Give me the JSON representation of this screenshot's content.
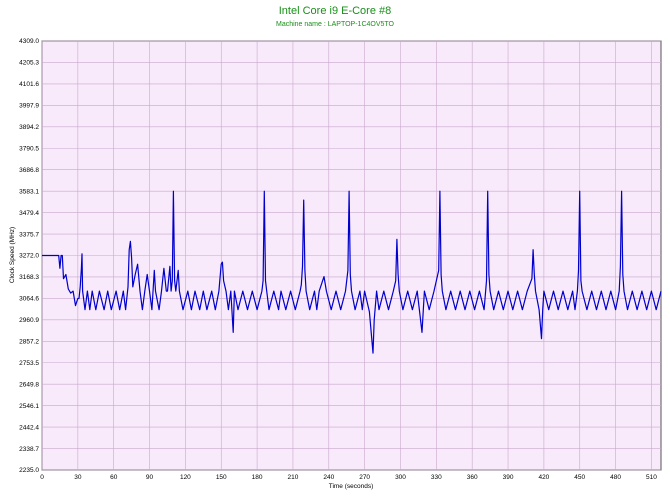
{
  "chart_data": {
    "type": "line",
    "title": "Intel Core i9 E-Core #8",
    "subtitle": "Machine name : LAPTOP-1C4OV5TO",
    "xlabel": "Time (seconds)",
    "ylabel": "Clock Speed (MHz)",
    "xlim": [
      0,
      518
    ],
    "ylim": [
      2235.0,
      4309.0
    ],
    "x_ticks": [
      0,
      30,
      60,
      90,
      120,
      150,
      180,
      210,
      240,
      270,
      300,
      330,
      360,
      390,
      420,
      450,
      480,
      510
    ],
    "y_ticks": [
      "2235.0",
      "2338.7",
      "2442.4",
      "2546.1",
      "2649.8",
      "2753.5",
      "2857.2",
      "2960.9",
      "3064.6",
      "3168.3",
      "3272.0",
      "3375.7",
      "3479.4",
      "3583.1",
      "3686.8",
      "3790.5",
      "3894.2",
      "3997.9",
      "4101.6",
      "4205.3",
      "4309.0"
    ],
    "grid": true,
    "colors": {
      "plot_bg": "#f8e9fb",
      "grid": "#c9a9cc",
      "line": "#0000cc",
      "title": "#1a8f1a"
    },
    "series": [
      {
        "values": [
          [
            0,
            3272
          ],
          [
            5,
            3272
          ],
          [
            10,
            3272
          ],
          [
            14,
            3272
          ],
          [
            15,
            3210
          ],
          [
            16,
            3272
          ],
          [
            17,
            3272
          ],
          [
            18,
            3160
          ],
          [
            20,
            3180
          ],
          [
            22,
            3110
          ],
          [
            24,
            3090
          ],
          [
            26,
            3100
          ],
          [
            28,
            3030
          ],
          [
            30,
            3064
          ],
          [
            31,
            3064
          ],
          [
            32,
            3120
          ],
          [
            33,
            3210
          ],
          [
            33.5,
            3280
          ],
          [
            34,
            3100
          ],
          [
            36,
            3010
          ],
          [
            38,
            3100
          ],
          [
            40,
            3010
          ],
          [
            42,
            3100
          ],
          [
            45,
            3010
          ],
          [
            48,
            3100
          ],
          [
            52,
            3010
          ],
          [
            55,
            3100
          ],
          [
            58,
            3010
          ],
          [
            62,
            3100
          ],
          [
            65,
            3010
          ],
          [
            68,
            3100
          ],
          [
            70,
            3010
          ],
          [
            72,
            3120
          ],
          [
            73,
            3300
          ],
          [
            74,
            3340
          ],
          [
            75,
            3260
          ],
          [
            76,
            3120
          ],
          [
            78,
            3180
          ],
          [
            80,
            3230
          ],
          [
            82,
            3100
          ],
          [
            84,
            3010
          ],
          [
            86,
            3100
          ],
          [
            88,
            3180
          ],
          [
            90,
            3100
          ],
          [
            92,
            3010
          ],
          [
            94,
            3200
          ],
          [
            95,
            3100
          ],
          [
            98,
            3010
          ],
          [
            100,
            3100
          ],
          [
            102,
            3210
          ],
          [
            104,
            3100
          ],
          [
            105,
            3100
          ],
          [
            106,
            3160
          ],
          [
            107,
            3220
          ],
          [
            108,
            3100
          ],
          [
            109,
            3150
          ],
          [
            110,
            3583
          ],
          [
            111,
            3150
          ],
          [
            112,
            3100
          ],
          [
            114,
            3200
          ],
          [
            115,
            3100
          ],
          [
            118,
            3010
          ],
          [
            122,
            3100
          ],
          [
            125,
            3010
          ],
          [
            128,
            3100
          ],
          [
            132,
            3010
          ],
          [
            135,
            3100
          ],
          [
            138,
            3010
          ],
          [
            142,
            3100
          ],
          [
            145,
            3010
          ],
          [
            148,
            3100
          ],
          [
            150,
            3230
          ],
          [
            151,
            3240
          ],
          [
            152,
            3150
          ],
          [
            154,
            3100
          ],
          [
            156,
            3010
          ],
          [
            158,
            3100
          ],
          [
            160,
            2900
          ],
          [
            161,
            3100
          ],
          [
            164,
            3010
          ],
          [
            168,
            3100
          ],
          [
            172,
            3010
          ],
          [
            176,
            3100
          ],
          [
            180,
            3010
          ],
          [
            184,
            3100
          ],
          [
            185,
            3150
          ],
          [
            186,
            3583
          ],
          [
            187,
            3150
          ],
          [
            188,
            3100
          ],
          [
            190,
            3010
          ],
          [
            194,
            3100
          ],
          [
            198,
            3010
          ],
          [
            200,
            3100
          ],
          [
            204,
            3010
          ],
          [
            208,
            3100
          ],
          [
            212,
            3010
          ],
          [
            216,
            3100
          ],
          [
            217,
            3130
          ],
          [
            218,
            3220
          ],
          [
            219,
            3540
          ],
          [
            220,
            3200
          ],
          [
            221,
            3100
          ],
          [
            224,
            3010
          ],
          [
            228,
            3100
          ],
          [
            230,
            3010
          ],
          [
            232,
            3100
          ],
          [
            236,
            3170
          ],
          [
            238,
            3100
          ],
          [
            242,
            3010
          ],
          [
            246,
            3100
          ],
          [
            250,
            3010
          ],
          [
            254,
            3100
          ],
          [
            256,
            3200
          ],
          [
            257,
            3583
          ],
          [
            258,
            3180
          ],
          [
            259,
            3100
          ],
          [
            262,
            3010
          ],
          [
            266,
            3100
          ],
          [
            268,
            3010
          ],
          [
            270,
            3100
          ],
          [
            274,
            3000
          ],
          [
            277,
            2800
          ],
          [
            278,
            2960
          ],
          [
            280,
            3100
          ],
          [
            282,
            3010
          ],
          [
            286,
            3100
          ],
          [
            290,
            3010
          ],
          [
            294,
            3100
          ],
          [
            296,
            3150
          ],
          [
            297,
            3350
          ],
          [
            298,
            3180
          ],
          [
            299,
            3100
          ],
          [
            302,
            3010
          ],
          [
            306,
            3100
          ],
          [
            310,
            3010
          ],
          [
            314,
            3100
          ],
          [
            318,
            2900
          ],
          [
            320,
            3100
          ],
          [
            324,
            3010
          ],
          [
            328,
            3100
          ],
          [
            332,
            3200
          ],
          [
            333,
            3583
          ],
          [
            334,
            3180
          ],
          [
            335,
            3100
          ],
          [
            338,
            3010
          ],
          [
            342,
            3100
          ],
          [
            346,
            3010
          ],
          [
            350,
            3100
          ],
          [
            354,
            3010
          ],
          [
            358,
            3100
          ],
          [
            362,
            3010
          ],
          [
            366,
            3100
          ],
          [
            370,
            3010
          ],
          [
            372,
            3150
          ],
          [
            373,
            3583
          ],
          [
            374,
            3180
          ],
          [
            375,
            3100
          ],
          [
            378,
            3010
          ],
          [
            382,
            3100
          ],
          [
            386,
            3010
          ],
          [
            390,
            3100
          ],
          [
            394,
            3010
          ],
          [
            398,
            3100
          ],
          [
            402,
            3010
          ],
          [
            406,
            3100
          ],
          [
            410,
            3160
          ],
          [
            411,
            3300
          ],
          [
            412,
            3180
          ],
          [
            413,
            3100
          ],
          [
            416,
            3010
          ],
          [
            418,
            2870
          ],
          [
            419,
            3010
          ],
          [
            420,
            3100
          ],
          [
            424,
            3010
          ],
          [
            428,
            3100
          ],
          [
            432,
            3010
          ],
          [
            436,
            3100
          ],
          [
            440,
            3010
          ],
          [
            444,
            3100
          ],
          [
            446,
            3010
          ],
          [
            448,
            3100
          ],
          [
            449,
            3200
          ],
          [
            450,
            3583
          ],
          [
            451,
            3150
          ],
          [
            452,
            3100
          ],
          [
            456,
            3010
          ],
          [
            460,
            3100
          ],
          [
            464,
            3010
          ],
          [
            468,
            3100
          ],
          [
            472,
            3010
          ],
          [
            476,
            3100
          ],
          [
            480,
            3010
          ],
          [
            483,
            3100
          ],
          [
            484,
            3220
          ],
          [
            485,
            3583
          ],
          [
            486,
            3180
          ],
          [
            487,
            3100
          ],
          [
            490,
            3010
          ],
          [
            494,
            3100
          ],
          [
            498,
            3010
          ],
          [
            502,
            3100
          ],
          [
            506,
            3010
          ],
          [
            510,
            3100
          ],
          [
            514,
            3010
          ],
          [
            518,
            3100
          ]
        ]
      }
    ]
  }
}
